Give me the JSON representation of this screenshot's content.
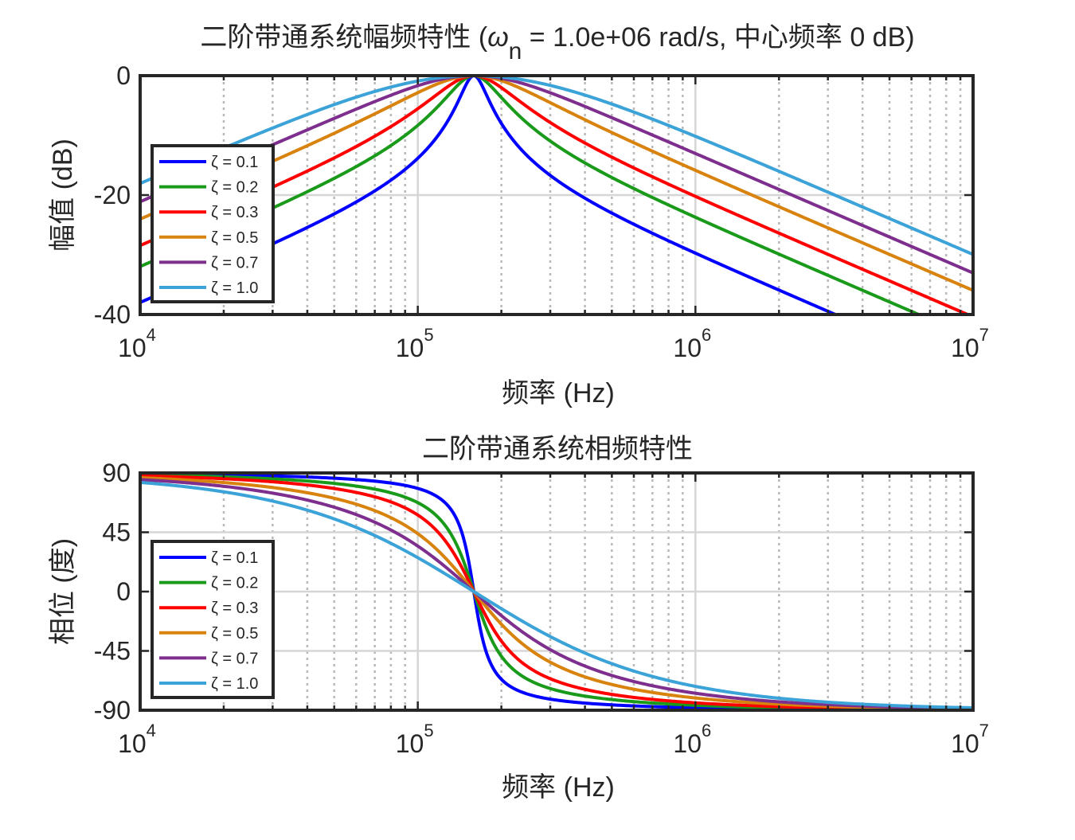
{
  "chart_data": [
    {
      "type": "line",
      "title_prefix": "二阶带通系统幅频特性 (",
      "title_omega": "ω",
      "title_sub": "n",
      "title_suffix": " = 1.0e+06 rad/s, 中心频率 0 dB)",
      "xlabel": "频率 (Hz)",
      "ylabel": "幅值 (dB)",
      "xscale": "log",
      "xlim": [
        10000,
        10000000
      ],
      "ylim": [
        -40,
        0
      ],
      "yticks": [
        0,
        -20,
        -40
      ],
      "ytick_labels": [
        "0",
        "-20",
        "-40"
      ],
      "xticks": [
        {
          "base": "10",
          "exp": "4"
        },
        {
          "base": "10",
          "exp": "5"
        },
        {
          "base": "10",
          "exp": "6"
        },
        {
          "base": "10",
          "exp": "7"
        }
      ],
      "grid": true,
      "legend_position": "left",
      "quantity": "magnitude",
      "omega_n": 1000000,
      "series": [
        {
          "name": "ζ = 0.1",
          "zeta": 0.1,
          "color": "#0000ff"
        },
        {
          "name": "ζ = 0.2",
          "zeta": 0.2,
          "color": "#1a9a1a"
        },
        {
          "name": "ζ = 0.3",
          "zeta": 0.3,
          "color": "#ff0000"
        },
        {
          "name": "ζ = 0.5",
          "zeta": 0.5,
          "color": "#d9830f"
        },
        {
          "name": "ζ = 0.7",
          "zeta": 0.7,
          "color": "#7e2f8e"
        },
        {
          "name": "ζ = 1.0",
          "zeta": 1.0,
          "color": "#3ba3d8"
        }
      ]
    },
    {
      "type": "line",
      "title": "二阶带通系统相频特性",
      "xlabel": "频率 (Hz)",
      "ylabel": "相位 (度)",
      "xscale": "log",
      "xlim": [
        10000,
        10000000
      ],
      "ylim": [
        -90,
        90
      ],
      "yticks": [
        90,
        45,
        0,
        -45,
        -90
      ],
      "ytick_labels": [
        "90",
        "45",
        "0",
        "-45",
        "-90"
      ],
      "xticks": [
        {
          "base": "10",
          "exp": "4"
        },
        {
          "base": "10",
          "exp": "5"
        },
        {
          "base": "10",
          "exp": "6"
        },
        {
          "base": "10",
          "exp": "7"
        }
      ],
      "grid": true,
      "legend_position": "left",
      "quantity": "phase",
      "omega_n": 1000000,
      "series": [
        {
          "name": "ζ = 0.1",
          "zeta": 0.1,
          "color": "#0000ff"
        },
        {
          "name": "ζ = 0.2",
          "zeta": 0.2,
          "color": "#1a9a1a"
        },
        {
          "name": "ζ = 0.3",
          "zeta": 0.3,
          "color": "#ff0000"
        },
        {
          "name": "ζ = 0.5",
          "zeta": 0.5,
          "color": "#d9830f"
        },
        {
          "name": "ζ = 0.7",
          "zeta": 0.7,
          "color": "#7e2f8e"
        },
        {
          "name": "ζ = 1.0",
          "zeta": 1.0,
          "color": "#3ba3d8"
        }
      ]
    }
  ]
}
